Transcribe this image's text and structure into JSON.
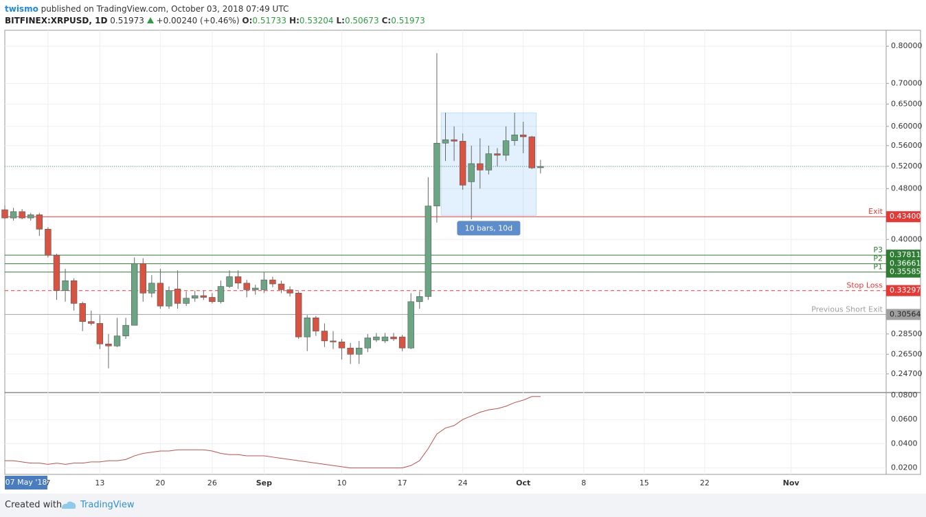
{
  "header": {
    "author": "twismo",
    "published": "published on TradingView.com, October 03, 2018 07:49 UTC",
    "symbol": "BITFINEX:XRPUSD, 1D",
    "last": "0.51973",
    "change": "+0.00240 (+0.46%)",
    "ohlc": [
      {
        "label": "O:",
        "value": "0.51733"
      },
      {
        "label": "H:",
        "value": "0.53204"
      },
      {
        "label": "L:",
        "value": "0.50673"
      },
      {
        "label": "C:",
        "value": "0.51973"
      }
    ]
  },
  "footer": {
    "text": "Created with",
    "brand": "TradingView"
  },
  "chart_data": {
    "type": "candlestick",
    "log_scale": true,
    "grid": true,
    "up_color": "#6ba583",
    "down_color": "#d75442",
    "x": [
      "2018-08-02",
      "2018-08-03",
      "2018-08-04",
      "2018-08-05",
      "2018-08-06",
      "2018-08-07",
      "2018-08-08",
      "2018-08-09",
      "2018-08-10",
      "2018-08-11",
      "2018-08-12",
      "2018-08-13",
      "2018-08-14",
      "2018-08-15",
      "2018-08-16",
      "2018-08-17",
      "2018-08-18",
      "2018-08-19",
      "2018-08-20",
      "2018-08-21",
      "2018-08-22",
      "2018-08-23",
      "2018-08-24",
      "2018-08-25",
      "2018-08-26",
      "2018-08-27",
      "2018-08-28",
      "2018-08-29",
      "2018-08-30",
      "2018-08-31",
      "2018-09-01",
      "2018-09-02",
      "2018-09-03",
      "2018-09-04",
      "2018-09-05",
      "2018-09-06",
      "2018-09-07",
      "2018-09-08",
      "2018-09-09",
      "2018-09-10",
      "2018-09-11",
      "2018-09-12",
      "2018-09-13",
      "2018-09-14",
      "2018-09-15",
      "2018-09-16",
      "2018-09-17",
      "2018-09-18",
      "2018-09-19",
      "2018-09-20",
      "2018-09-21",
      "2018-09-22",
      "2018-09-23",
      "2018-09-24",
      "2018-09-25",
      "2018-09-26",
      "2018-09-27",
      "2018-09-28",
      "2018-09-29",
      "2018-09-30",
      "2018-10-01",
      "2018-10-02",
      "2018-10-03"
    ],
    "open": [
      0.445,
      0.432,
      0.442,
      0.432,
      0.437,
      0.415,
      0.378,
      0.333,
      0.345,
      0.318,
      0.298,
      0.296,
      0.275,
      0.273,
      0.283,
      0.294,
      0.367,
      0.33,
      0.342,
      0.315,
      0.335,
      0.318,
      0.324,
      0.327,
      0.325,
      0.32,
      0.338,
      0.35,
      0.342,
      0.334,
      0.334,
      0.346,
      0.341,
      0.334,
      0.33,
      0.282,
      0.302,
      0.288,
      0.278,
      0.277,
      0.271,
      0.265,
      0.271,
      0.279,
      0.278,
      0.282,
      0.282,
      0.271,
      0.32,
      0.326,
      0.451,
      0.565,
      0.572,
      0.569,
      0.492,
      0.525,
      0.513,
      0.544,
      0.541,
      0.57,
      0.582,
      0.578,
      0.51733
    ],
    "high": [
      0.452,
      0.448,
      0.446,
      0.44,
      0.44,
      0.418,
      0.38,
      0.36,
      0.348,
      0.32,
      0.31,
      0.305,
      0.285,
      0.302,
      0.302,
      0.375,
      0.374,
      0.352,
      0.36,
      0.338,
      0.358,
      0.332,
      0.333,
      0.333,
      0.33,
      0.345,
      0.358,
      0.358,
      0.346,
      0.34,
      0.356,
      0.35,
      0.345,
      0.338,
      0.332,
      0.305,
      0.304,
      0.296,
      0.288,
      0.28,
      0.276,
      0.278,
      0.285,
      0.286,
      0.286,
      0.286,
      0.284,
      0.33,
      0.332,
      0.5,
      0.78,
      0.63,
      0.6,
      0.585,
      0.56,
      0.575,
      0.56,
      0.555,
      0.6,
      0.63,
      0.61,
      0.58,
      0.53204
    ],
    "low": [
      0.43,
      0.428,
      0.43,
      0.428,
      0.405,
      0.375,
      0.322,
      0.32,
      0.31,
      0.288,
      0.294,
      0.27,
      0.252,
      0.272,
      0.28,
      0.294,
      0.32,
      0.325,
      0.312,
      0.312,
      0.312,
      0.315,
      0.32,
      0.322,
      0.318,
      0.318,
      0.336,
      0.335,
      0.325,
      0.328,
      0.33,
      0.337,
      0.33,
      0.326,
      0.28,
      0.268,
      0.283,
      0.272,
      0.27,
      0.26,
      0.256,
      0.256,
      0.267,
      0.277,
      0.276,
      0.278,
      0.268,
      0.27,
      0.312,
      0.322,
      0.425,
      0.53,
      0.53,
      0.478,
      0.43,
      0.48,
      0.505,
      0.52,
      0.53,
      0.56,
      0.545,
      0.515,
      0.50673
    ],
    "close": [
      0.432,
      0.442,
      0.432,
      0.437,
      0.415,
      0.378,
      0.333,
      0.345,
      0.318,
      0.298,
      0.296,
      0.275,
      0.273,
      0.283,
      0.294,
      0.367,
      0.33,
      0.342,
      0.315,
      0.333,
      0.318,
      0.324,
      0.327,
      0.325,
      0.32,
      0.338,
      0.35,
      0.342,
      0.334,
      0.336,
      0.346,
      0.341,
      0.334,
      0.33,
      0.282,
      0.302,
      0.288,
      0.278,
      0.277,
      0.271,
      0.265,
      0.271,
      0.281,
      0.282,
      0.282,
      0.28,
      0.271,
      0.32,
      0.326,
      0.451,
      0.565,
      0.572,
      0.569,
      0.486,
      0.525,
      0.513,
      0.544,
      0.541,
      0.57,
      0.582,
      0.578,
      0.517,
      0.51973
    ],
    "xlim": [
      "2018-08-02",
      "2018-11-12"
    ],
    "xticks": [
      {
        "value": "2018-08-07",
        "label": "7"
      },
      {
        "value": "2018-08-13",
        "label": "13"
      },
      {
        "value": "2018-08-20",
        "label": "20"
      },
      {
        "value": "2018-08-26",
        "label": "26"
      },
      {
        "value": "2018-09-01",
        "label": "Sep"
      },
      {
        "value": "2018-09-10",
        "label": "10"
      },
      {
        "value": "2018-09-17",
        "label": "17"
      },
      {
        "value": "2018-09-24",
        "label": "24"
      },
      {
        "value": "2018-10-01",
        "label": "Oct"
      },
      {
        "value": "2018-10-08",
        "label": "8"
      },
      {
        "value": "2018-10-15",
        "label": "15"
      },
      {
        "value": "2018-10-22",
        "label": "22"
      },
      {
        "value": "2018-11-01",
        "label": "Nov"
      }
    ],
    "ylim": [
      0.231,
      0.847
    ],
    "yticks": [
      {
        "value": 0.8,
        "label": "0.80000"
      },
      {
        "value": 0.7,
        "label": "0.70000"
      },
      {
        "value": 0.65,
        "label": "0.65000"
      },
      {
        "value": 0.6,
        "label": "0.60000"
      },
      {
        "value": 0.56,
        "label": "0.56000"
      },
      {
        "value": 0.52,
        "label": "0.52000"
      },
      {
        "value": 0.48,
        "label": "0.48000"
      },
      {
        "value": 0.4,
        "label": "0.40000"
      },
      {
        "value": 0.285,
        "label": "0.28500"
      },
      {
        "value": 0.265,
        "label": "0.26500"
      },
      {
        "value": 0.247,
        "label": "0.24700"
      }
    ],
    "levels": [
      {
        "name": "Exit",
        "price": {
          "value": 0.434,
          "label": "0.43400"
        },
        "color": "#e53935",
        "dashed": false
      },
      {
        "name": "P3",
        "price": {
          "value": 0.37811,
          "label": "0.37811"
        },
        "color": "#2e7d32",
        "dashed": false
      },
      {
        "name": "P2",
        "price": {
          "value": 0.36661,
          "label": "0.36661"
        },
        "color": "#2e7d32",
        "dashed": false
      },
      {
        "name": "P1",
        "price": {
          "value": 0.35585,
          "label": "0.35585"
        },
        "color": "#2e7d32",
        "dashed": false
      },
      {
        "name": "Stop Loss",
        "price": {
          "value": 0.33297,
          "label": "0.33297"
        },
        "color": "#e53935",
        "dashed": true
      },
      {
        "name": "Previous Short Exit",
        "price": {
          "value": 0.30564,
          "label": "0.30564"
        },
        "color": "#a0a0a0",
        "dashed": false
      }
    ],
    "date_range": {
      "start": "2018-09-22",
      "end": "2018-10-02",
      "high": 0.63,
      "low": 0.436,
      "label": "10 bars, 10d"
    },
    "cursor_date": "07 May '18",
    "indicator": {
      "type": "line",
      "color": "#c0504d",
      "ylim": [
        0.0147,
        0.0817
      ],
      "yticks": [
        {
          "value": 0.08,
          "label": "0.0800"
        },
        {
          "value": 0.06,
          "label": "0.0600"
        },
        {
          "value": 0.04,
          "label": "0.0400"
        },
        {
          "value": 0.02,
          "label": "0.0200"
        }
      ],
      "values": [
        0.026,
        0.026,
        0.025,
        0.024,
        0.024,
        0.023,
        0.024,
        0.023,
        0.024,
        0.024,
        0.025,
        0.025,
        0.026,
        0.026,
        0.027,
        0.03,
        0.032,
        0.033,
        0.034,
        0.034,
        0.035,
        0.035,
        0.035,
        0.035,
        0.034,
        0.032,
        0.031,
        0.031,
        0.03,
        0.03,
        0.03,
        0.029,
        0.028,
        0.027,
        0.026,
        0.025,
        0.024,
        0.023,
        0.022,
        0.021,
        0.02,
        0.02,
        0.02,
        0.02,
        0.02,
        0.02,
        0.02,
        0.022,
        0.026,
        0.036,
        0.048,
        0.053,
        0.055,
        0.06,
        0.063,
        0.066,
        0.068,
        0.069,
        0.071,
        0.074,
        0.076,
        0.079,
        0.079
      ]
    }
  }
}
